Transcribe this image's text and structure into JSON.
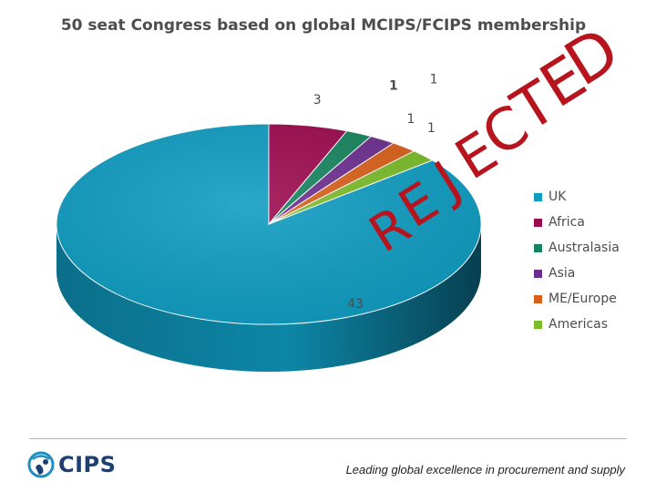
{
  "chart_data": {
    "type": "pie",
    "title": "50 seat Congress based on global MCIPS/FCIPS membership",
    "categories": [
      "UK",
      "Africa",
      "Australasia",
      "Asia",
      "ME/Europe",
      "Americas"
    ],
    "values": [
      43,
      3,
      1,
      1,
      1,
      1
    ],
    "data_labels": [
      "43",
      "3",
      "1",
      "1",
      "1",
      "1"
    ],
    "colors": [
      "#0f9cc1",
      "#9c0a4e",
      "#16845e",
      "#6c2e8e",
      "#d9601a",
      "#7bbc2a"
    ],
    "legend_position": "right",
    "style": "3d"
  },
  "stamp": {
    "text": "REJECTED",
    "color": "#b8141e"
  },
  "footer": {
    "logo_text": "CIPS",
    "tagline": "Leading global excellence in procurement and supply"
  }
}
